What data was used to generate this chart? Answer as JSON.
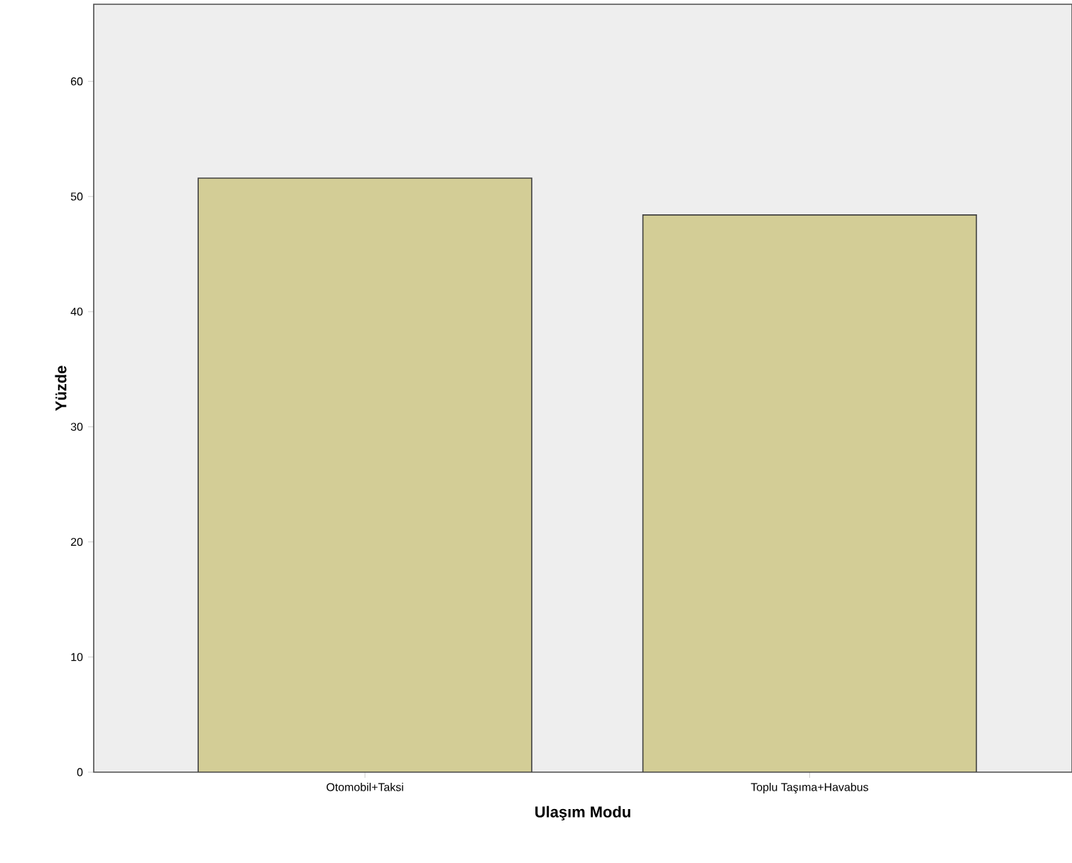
{
  "chart_data": {
    "type": "bar",
    "xlabel": "Ulaşım Modu",
    "ylabel": "Yüzde",
    "categories": [
      "Otomobil+Taksi",
      "Toplu Taşıma+Havabus"
    ],
    "values": [
      51.6,
      48.4
    ],
    "color": "#d3cd96",
    "ylim": [
      0,
      66.7
    ],
    "yticks": [
      0,
      10,
      20,
      30,
      40,
      50,
      60
    ],
    "grid": false
  }
}
